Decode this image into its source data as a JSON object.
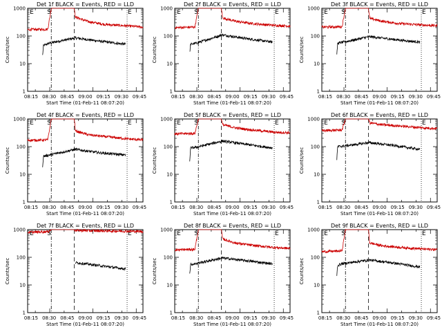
{
  "figure": {
    "y_label": "Counts/sec",
    "x_label": "Start Time (01-Feb-11 08:07:20)",
    "x_tick_labels": [
      "08:15",
      "08:30",
      "08:45",
      "09:00",
      "09:15",
      "09:30",
      "09:45"
    ],
    "y_tick_labels": [
      "1",
      "10",
      "100",
      "1000"
    ],
    "event_markers": [
      "E",
      "S",
      "E"
    ],
    "series_colors": {
      "events": "#000000",
      "lld": "#cc0000"
    }
  },
  "chart_data": [
    {
      "type": "line",
      "title": "Det 1f BLACK = Events, RED = LLD",
      "xlabel": "Start Time (01-Feb-11 08:07:20)",
      "ylabel": "Counts/sec",
      "x_range_min": [
        0,
        40
      ],
      "ylim": [
        1,
        1000
      ],
      "y_scale": "log",
      "markers": {
        "E_start": 0.5,
        "S": 8.2,
        "attenuator_dash": 16.2,
        "E_end": 34.5
      },
      "series": [
        {
          "name": "Events",
          "points": [
            [
              5.2,
              20
            ],
            [
              5.5,
              45
            ],
            [
              7.5,
              55
            ],
            [
              16.5,
              85
            ],
            [
              25,
              65
            ],
            [
              34,
              50
            ]
          ]
        },
        {
          "name": "LLD",
          "points": [
            [
              0,
              170
            ],
            [
              7,
              175
            ],
            [
              8.2,
              1000
            ],
            [
              16.2,
              1000
            ],
            [
              16.6,
              480
            ],
            [
              21,
              330
            ],
            [
              27,
              260
            ],
            [
              35,
              230
            ],
            [
              40,
              210
            ]
          ]
        }
      ]
    },
    {
      "type": "line",
      "title": "Det 2f BLACK = Events, RED = LLD",
      "xlabel": "Start Time (01-Feb-11 08:07:20)",
      "ylabel": "Counts/sec",
      "x_range_min": [
        0,
        40
      ],
      "ylim": [
        1,
        1000
      ],
      "y_scale": "log",
      "markers": {
        "E_start": 0.5,
        "S": 8.2,
        "attenuator_dash": 16.2,
        "E_end": 34.5
      },
      "series": [
        {
          "name": "Events",
          "points": [
            [
              5.2,
              25
            ],
            [
              5.5,
              50
            ],
            [
              7.5,
              55
            ],
            [
              16.5,
              110
            ],
            [
              25,
              80
            ],
            [
              34,
              60
            ]
          ]
        },
        {
          "name": "LLD",
          "points": [
            [
              0,
              200
            ],
            [
              7,
              210
            ],
            [
              8.2,
              1000
            ],
            [
              16.2,
              1000
            ],
            [
              16.6,
              450
            ],
            [
              21,
              340
            ],
            [
              27,
              280
            ],
            [
              35,
              240
            ],
            [
              40,
              230
            ]
          ]
        }
      ]
    },
    {
      "type": "line",
      "title": "Det 3f BLACK = Events, RED = LLD",
      "xlabel": "Start Time (01-Feb-11 08:07:20)",
      "ylabel": "Counts/sec",
      "x_range_min": [
        0,
        40
      ],
      "ylim": [
        1,
        1000
      ],
      "y_scale": "log",
      "markers": {
        "E_start": 0.5,
        "S": 8.2,
        "attenuator_dash": 16.2,
        "E_end": 34.5
      },
      "series": [
        {
          "name": "Events",
          "points": [
            [
              5.2,
              20
            ],
            [
              5.5,
              55
            ],
            [
              7.5,
              60
            ],
            [
              16.5,
              95
            ],
            [
              25,
              75
            ],
            [
              34,
              60
            ]
          ]
        },
        {
          "name": "LLD",
          "points": [
            [
              0,
              210
            ],
            [
              7,
              215
            ],
            [
              8.2,
              1000
            ],
            [
              16.2,
              1000
            ],
            [
              16.6,
              430
            ],
            [
              21,
              340
            ],
            [
              27,
              280
            ],
            [
              35,
              250
            ],
            [
              40,
              235
            ]
          ]
        }
      ]
    },
    {
      "type": "line",
      "title": "Det 4f BLACK = Events, RED = LLD",
      "xlabel": "Start Time (01-Feb-11 08:07:20)",
      "ylabel": "Counts/sec",
      "x_range_min": [
        0,
        40
      ],
      "ylim": [
        1,
        1000
      ],
      "y_scale": "log",
      "markers": {
        "E_start": 0.5,
        "S": 8.2,
        "attenuator_dash": 16.2,
        "E_end": 34.5
      },
      "series": [
        {
          "name": "Events",
          "points": [
            [
              5.2,
              20
            ],
            [
              5.5,
              45
            ],
            [
              7.5,
              50
            ],
            [
              16.5,
              80
            ],
            [
              25,
              60
            ],
            [
              34,
              50
            ]
          ]
        },
        {
          "name": "LLD",
          "points": [
            [
              0,
              170
            ],
            [
              7,
              175
            ],
            [
              8.2,
              1000
            ],
            [
              16.2,
              1000
            ],
            [
              16.6,
              370
            ],
            [
              21,
              270
            ],
            [
              27,
              230
            ],
            [
              35,
              190
            ],
            [
              40,
              175
            ]
          ]
        }
      ]
    },
    {
      "type": "line",
      "title": "Det 5f BLACK = Events, RED = LLD",
      "xlabel": "Start Time (01-Feb-11 08:07:20)",
      "ylabel": "Counts/sec",
      "x_range_min": [
        0,
        40
      ],
      "ylim": [
        1,
        1000
      ],
      "y_scale": "log",
      "markers": {
        "E_start": 0.5,
        "S": 8.2,
        "attenuator_dash": 16.2,
        "E_end": 34.5
      },
      "series": [
        {
          "name": "Events",
          "points": [
            [
              5.2,
              30
            ],
            [
              5.5,
              90
            ],
            [
              7.5,
              95
            ],
            [
              16.5,
              160
            ],
            [
              25,
              120
            ],
            [
              34,
              90
            ]
          ]
        },
        {
          "name": "LLD",
          "points": [
            [
              0,
              290
            ],
            [
              7,
              300
            ],
            [
              8.2,
              1000
            ],
            [
              16.2,
              1000
            ],
            [
              16.6,
              620
            ],
            [
              21,
              480
            ],
            [
              27,
              400
            ],
            [
              35,
              330
            ],
            [
              40,
              320
            ]
          ]
        }
      ]
    },
    {
      "type": "line",
      "title": "Det 6f BLACK = Events, RED = LLD",
      "xlabel": "Start Time (01-Feb-11 08:07:20)",
      "ylabel": "Counts/sec",
      "x_range_min": [
        0,
        40
      ],
      "ylim": [
        1,
        1000
      ],
      "y_scale": "log",
      "markers": {
        "E_start": 0.5,
        "S": 8.2,
        "attenuator_dash": 16.2,
        "E_end": 34.5
      },
      "series": [
        {
          "name": "Events",
          "points": [
            [
              5.2,
              35
            ],
            [
              5.5,
              100
            ],
            [
              7.5,
              105
            ],
            [
              16.5,
              140
            ],
            [
              25,
              110
            ],
            [
              34,
              80
            ]
          ]
        },
        {
          "name": "LLD",
          "points": [
            [
              0,
              380
            ],
            [
              7,
              400
            ],
            [
              8.2,
              1000
            ],
            [
              16.2,
              1000
            ],
            [
              16.6,
              720
            ],
            [
              21,
              620
            ],
            [
              27,
              560
            ],
            [
              35,
              480
            ],
            [
              40,
              450
            ]
          ]
        }
      ]
    },
    {
      "type": "line",
      "title": "Det 7f BLACK = Events, RED = LLD",
      "xlabel": "Start Time (01-Feb-11 08:07:20)",
      "ylabel": "Counts/sec",
      "x_range_min": [
        0,
        40
      ],
      "ylim": [
        1,
        1000
      ],
      "y_scale": "log",
      "markers": {
        "E_start": 0.5,
        "S": 8.2,
        "attenuator_dash": 16.2,
        "E_end": 34.5
      },
      "series": [
        {
          "name": "Events",
          "points": [
            [
              16.5,
              65
            ],
            [
              25,
              50
            ],
            [
              34,
              38
            ]
          ]
        },
        {
          "name": "LLD",
          "points": [
            [
              0,
              800
            ],
            [
              7,
              850
            ],
            [
              8.2,
              1000
            ],
            [
              16.2,
              1000
            ],
            [
              16.6,
              950
            ],
            [
              21,
              920
            ],
            [
              27,
              900
            ],
            [
              35,
              880
            ],
            [
              40,
              860
            ]
          ]
        }
      ]
    },
    {
      "type": "line",
      "title": "Det 8f BLACK = Events, RED = LLD",
      "xlabel": "Start Time (01-Feb-11 08:07:20)",
      "ylabel": "Counts/sec",
      "x_range_min": [
        0,
        40
      ],
      "ylim": [
        1,
        1000
      ],
      "y_scale": "log",
      "markers": {
        "E_start": 0.5,
        "S": 8.2,
        "attenuator_dash": 16.2,
        "E_end": 34.5
      },
      "series": [
        {
          "name": "Events",
          "points": [
            [
              5.2,
              25
            ],
            [
              5.5,
              55
            ],
            [
              7.5,
              60
            ],
            [
              16.5,
              95
            ],
            [
              25,
              75
            ],
            [
              34,
              58
            ]
          ]
        },
        {
          "name": "LLD",
          "points": [
            [
              0,
              185
            ],
            [
              7,
              195
            ],
            [
              8.2,
              1000
            ],
            [
              16.2,
              1000
            ],
            [
              16.6,
              460
            ],
            [
              21,
              330
            ],
            [
              27,
              270
            ],
            [
              35,
              225
            ],
            [
              40,
              210
            ]
          ]
        }
      ]
    },
    {
      "type": "line",
      "title": "Det 9f BLACK = Events, RED = LLD",
      "xlabel": "Start Time (01-Feb-11 08:07:20)",
      "ylabel": "Counts/sec",
      "x_range_min": [
        0,
        40
      ],
      "ylim": [
        1,
        1000
      ],
      "y_scale": "log",
      "markers": {
        "E_start": 0.5,
        "S": 8.2,
        "attenuator_dash": 16.2,
        "E_end": 34.5
      },
      "series": [
        {
          "name": "Events",
          "points": [
            [
              5.2,
              22
            ],
            [
              5.5,
              52
            ],
            [
              7.5,
              60
            ],
            [
              16.5,
              80
            ],
            [
              25,
              62
            ],
            [
              34,
              45
            ]
          ]
        },
        {
          "name": "LLD",
          "points": [
            [
              0,
              160
            ],
            [
              7,
              170
            ],
            [
              8.2,
              1000
            ],
            [
              16.2,
              1000
            ],
            [
              16.6,
              330
            ],
            [
              21,
              260
            ],
            [
              27,
              230
            ],
            [
              35,
              200
            ],
            [
              40,
              190
            ]
          ]
        }
      ]
    }
  ]
}
